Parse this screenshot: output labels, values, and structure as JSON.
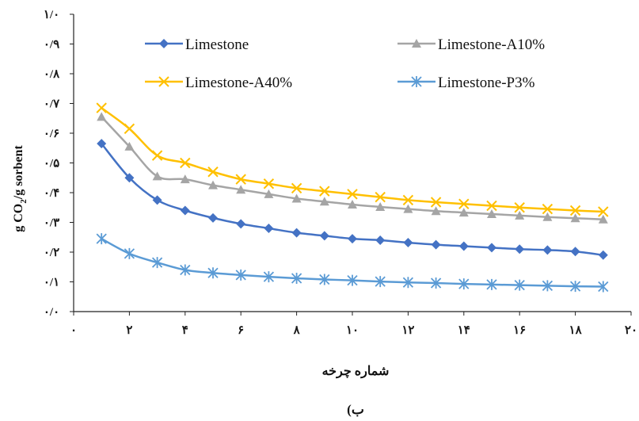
{
  "chart_data": {
    "type": "line",
    "xlabel": "شماره چرخه",
    "ylabel_main": "g CO",
    "ylabel_sub": "2",
    "ylabel_rest": "/g sorbent",
    "caption": "ب)",
    "xlim": [
      0,
      20
    ],
    "ylim": [
      0,
      1
    ],
    "x_ticks": [
      0,
      2,
      4,
      6,
      8,
      10,
      12,
      14,
      16,
      18,
      20
    ],
    "x_tick_labels": [
      "۰",
      "۲",
      "۴",
      "۶",
      "۸",
      "۱۰",
      "۱۲",
      "۱۴",
      "۱۶",
      "۱۸",
      "۲۰"
    ],
    "y_ticks": [
      0,
      0.1,
      0.2,
      0.3,
      0.4,
      0.5,
      0.6,
      0.7,
      0.8,
      0.9,
      1.0
    ],
    "y_tick_labels": [
      "۰/۰",
      "۰/۱",
      "۰/۲",
      "۰/۳",
      "۰/۴",
      "۰/۵",
      "۰/۶",
      "۰/۷",
      "۰/۸",
      "۰/۹",
      "۱/۰"
    ],
    "grid": false,
    "legend_position": "top",
    "x": [
      1,
      2,
      3,
      4,
      5,
      6,
      7,
      8,
      9,
      10,
      11,
      12,
      13,
      14,
      15,
      16,
      17,
      18,
      19
    ],
    "series": [
      {
        "name": "Limestone",
        "color": "#4472C4",
        "marker": "diamond",
        "values": [
          0.565,
          0.45,
          0.375,
          0.34,
          0.315,
          0.295,
          0.28,
          0.265,
          0.255,
          0.245,
          0.24,
          0.232,
          0.225,
          0.22,
          0.215,
          0.21,
          0.207,
          0.202,
          0.19
        ]
      },
      {
        "name": "Limestone-A10%",
        "color": "#A5A5A5",
        "marker": "triangle",
        "values": [
          0.655,
          0.555,
          0.455,
          0.445,
          0.425,
          0.41,
          0.395,
          0.38,
          0.37,
          0.36,
          0.352,
          0.345,
          0.338,
          0.333,
          0.328,
          0.323,
          0.318,
          0.314,
          0.31
        ]
      },
      {
        "name": "Limestone-A40%",
        "color": "#FFC000",
        "marker": "x",
        "values": [
          0.685,
          0.615,
          0.525,
          0.5,
          0.47,
          0.445,
          0.43,
          0.415,
          0.405,
          0.395,
          0.385,
          0.375,
          0.368,
          0.362,
          0.356,
          0.35,
          0.345,
          0.34,
          0.336
        ]
      },
      {
        "name": "Limestone-P3%",
        "color": "#5B9BD5",
        "marker": "asterisk",
        "values": [
          0.245,
          0.195,
          0.165,
          0.14,
          0.13,
          0.123,
          0.117,
          0.112,
          0.108,
          0.105,
          0.101,
          0.098,
          0.096,
          0.093,
          0.091,
          0.089,
          0.087,
          0.085,
          0.084
        ]
      }
    ]
  }
}
